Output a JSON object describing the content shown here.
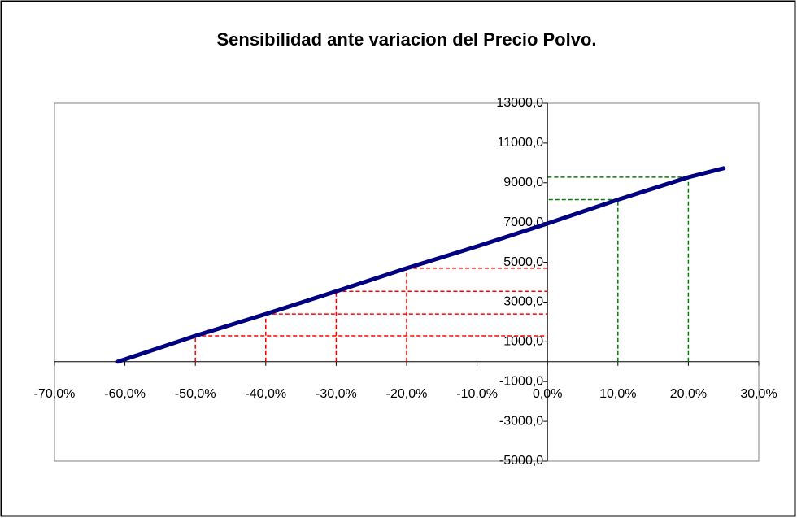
{
  "chart_data": {
    "type": "line",
    "title": "Sensibilidad ante variacion del Precio Polvo.",
    "x": [
      -61,
      -50,
      -40,
      -30,
      -20,
      -10,
      0,
      10,
      20,
      25
    ],
    "series": [
      {
        "color": "#000080",
        "values": [
          0,
          1300,
          2400,
          3540,
          4700,
          5800,
          6950,
          8150,
          9280,
          9730
        ]
      }
    ],
    "guide_colors": [
      null,
      "#ff0000",
      "#ff0000",
      "#ff0000",
      "#ff0000",
      null,
      null,
      "#008000",
      "#008000",
      null
    ],
    "xlim": [
      -70,
      30
    ],
    "xticks": [
      {
        "value": -70,
        "label": "-70,0%"
      },
      {
        "value": -60,
        "label": "-60,0%"
      },
      {
        "value": -50,
        "label": "-50,0%"
      },
      {
        "value": -40,
        "label": "-40,0%"
      },
      {
        "value": -30,
        "label": "-30,0%"
      },
      {
        "value": -20,
        "label": "-20,0%"
      },
      {
        "value": -10,
        "label": "-10,0%"
      },
      {
        "value": 0,
        "label": "0,0%"
      },
      {
        "value": 10,
        "label": "10,0%"
      },
      {
        "value": 20,
        "label": "20,0%"
      },
      {
        "value": 30,
        "label": "30,0%"
      }
    ],
    "ylim": [
      -5000,
      13000
    ],
    "yticks": [
      {
        "value": -5000,
        "label": "-5000,0"
      },
      {
        "value": -3000,
        "label": "-3000,0"
      },
      {
        "value": -1000,
        "label": "-1000,0"
      },
      {
        "value": 1000,
        "label": "1000,0"
      },
      {
        "value": 3000,
        "label": "3000,0"
      },
      {
        "value": 5000,
        "label": "5000,0"
      },
      {
        "value": 7000,
        "label": "7000,0"
      },
      {
        "value": 9000,
        "label": "9000,0"
      },
      {
        "value": 11000,
        "label": "11000,0"
      },
      {
        "value": 13000,
        "label": "13000,0"
      }
    ]
  }
}
